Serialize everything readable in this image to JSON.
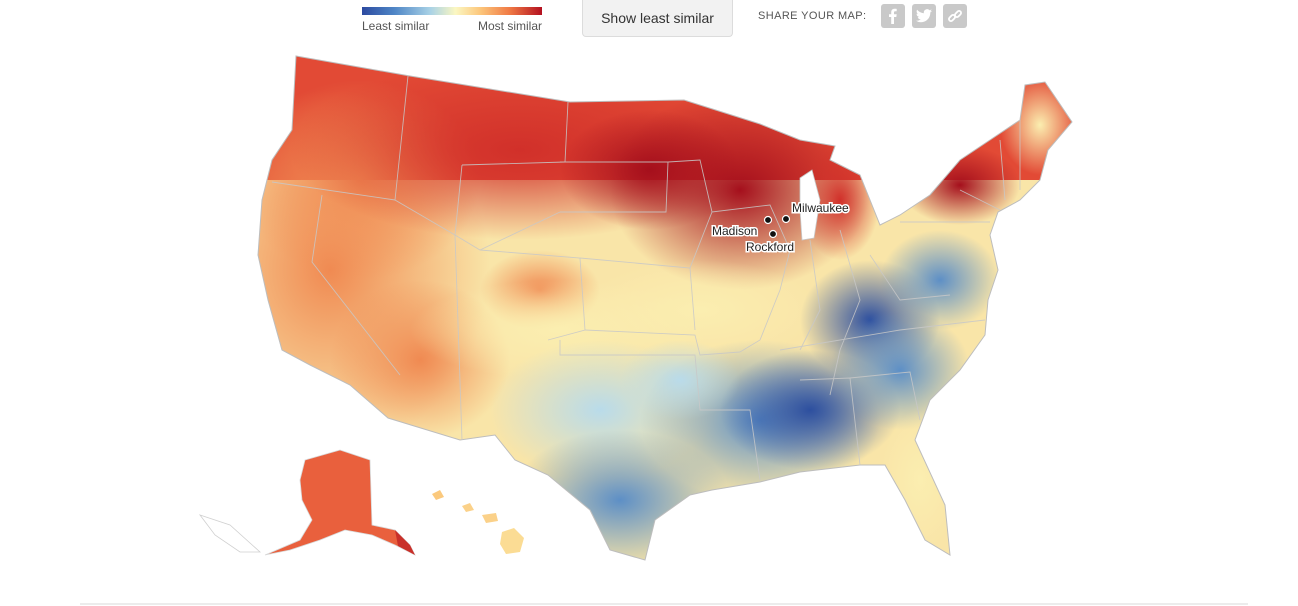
{
  "legend": {
    "least_label": "Least similar",
    "most_label": "Most similar",
    "scale_colors": [
      "#2c4aa0",
      "#4f86c6",
      "#a9d2e6",
      "#fbf7c2",
      "#fcc57a",
      "#f07a45",
      "#b3101f"
    ]
  },
  "toggle_button": {
    "label": "Show least similar"
  },
  "share": {
    "label": "SHARE YOUR MAP:",
    "icons": [
      "facebook-icon",
      "twitter-icon",
      "link-icon"
    ]
  },
  "map": {
    "cities": [
      {
        "name": "Milwaukee"
      },
      {
        "name": "Madison"
      },
      {
        "name": "Rockford"
      }
    ]
  }
}
